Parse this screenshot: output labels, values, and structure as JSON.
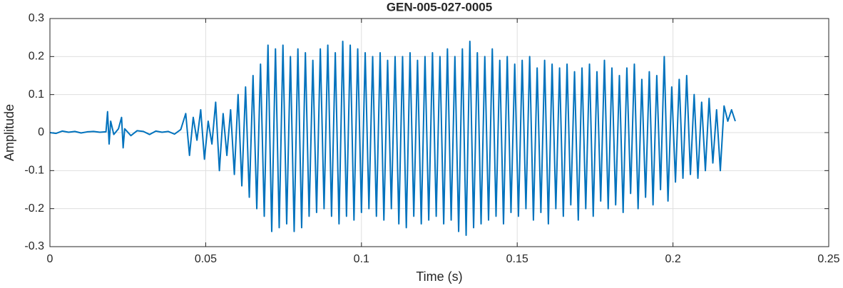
{
  "chart_data": {
    "type": "line",
    "title": "GEN-005-027-0005",
    "xlabel": "Time (s)",
    "ylabel": "Amplitude",
    "xlim": [
      0,
      0.25
    ],
    "xticks": [
      0,
      0.05,
      0.1,
      0.15,
      0.2,
      0.25
    ],
    "ylim": [
      -0.3,
      0.3
    ],
    "yticks": [
      -0.3,
      -0.2,
      -0.1,
      0,
      0.1,
      0.2,
      0.3
    ],
    "grid": true,
    "series": [
      {
        "color": "#0072bd",
        "x": [
          0,
          0.002,
          0.004,
          0.006,
          0.008,
          0.01,
          0.012,
          0.014,
          0.016,
          0.018,
          0.0185,
          0.019,
          0.0195,
          0.0205,
          0.022,
          0.023,
          0.0235,
          0.024,
          0.026,
          0.028,
          0.03,
          0.032,
          0.034,
          0.036,
          0.038,
          0.04,
          0.042,
          0.0436,
          0.0448,
          0.046,
          0.0472,
          0.0484,
          0.0496,
          0.0508,
          0.052,
          0.0532,
          0.0544,
          0.0556,
          0.0568,
          0.058,
          0.0592,
          0.0604,
          0.0616,
          0.0628,
          0.064,
          0.0652,
          0.0664,
          0.0676,
          0.0688,
          0.07,
          0.0712,
          0.0724,
          0.0736,
          0.0748,
          0.076,
          0.0772,
          0.0784,
          0.0796,
          0.0808,
          0.082,
          0.0832,
          0.0844,
          0.0856,
          0.0868,
          0.088,
          0.0892,
          0.0904,
          0.0916,
          0.0928,
          0.094,
          0.0952,
          0.0964,
          0.0976,
          0.0988,
          0.1,
          0.1012,
          0.1024,
          0.1036,
          0.1048,
          0.106,
          0.1072,
          0.1084,
          0.1096,
          0.1108,
          0.112,
          0.1132,
          0.1144,
          0.1156,
          0.1168,
          0.118,
          0.1192,
          0.1204,
          0.1216,
          0.1228,
          0.124,
          0.1252,
          0.1264,
          0.1276,
          0.1288,
          0.13,
          0.1312,
          0.1324,
          0.1336,
          0.1348,
          0.136,
          0.1372,
          0.1384,
          0.1396,
          0.1408,
          0.142,
          0.1432,
          0.1444,
          0.1456,
          0.1468,
          0.148,
          0.1492,
          0.1504,
          0.1516,
          0.1528,
          0.154,
          0.1552,
          0.1564,
          0.1576,
          0.1588,
          0.16,
          0.1612,
          0.1624,
          0.1636,
          0.1648,
          0.166,
          0.1672,
          0.1684,
          0.1696,
          0.1708,
          0.172,
          0.1732,
          0.1744,
          0.1756,
          0.1768,
          0.178,
          0.1792,
          0.1804,
          0.1816,
          0.1828,
          0.184,
          0.1852,
          0.1864,
          0.1876,
          0.1888,
          0.19,
          0.1912,
          0.1924,
          0.1936,
          0.1948,
          0.196,
          0.1972,
          0.1984,
          0.1996,
          0.2008,
          0.202,
          0.2032,
          0.2044,
          0.2056,
          0.2068,
          0.208,
          0.2092,
          0.2104,
          0.2116,
          0.2128,
          0.214,
          0.2152,
          0.2164,
          0.2176,
          0.2188,
          0.22
        ],
        "values": [
          0,
          -0.002,
          0.004,
          0.001,
          0.003,
          -0.001,
          0.002,
          0.003,
          0.001,
          0.002,
          0.055,
          -0.03,
          0.03,
          -0.005,
          0.01,
          0.04,
          -0.04,
          0.01,
          -0.008,
          0.005,
          0.003,
          -0.005,
          0.004,
          0.001,
          0.003,
          -0.004,
          0.008,
          0.05,
          -0.06,
          0.04,
          -0.02,
          0.06,
          -0.07,
          0.03,
          -0.03,
          0.08,
          -0.1,
          0.05,
          -0.06,
          0.06,
          -0.11,
          0.1,
          -0.14,
          0.12,
          -0.17,
          0.15,
          -0.2,
          0.18,
          -0.22,
          0.23,
          -0.26,
          0.22,
          -0.25,
          0.23,
          -0.24,
          0.2,
          -0.26,
          0.22,
          -0.25,
          0.21,
          -0.22,
          0.19,
          -0.21,
          0.22,
          -0.2,
          0.23,
          -0.22,
          0.21,
          -0.24,
          0.24,
          -0.22,
          0.23,
          -0.23,
          0.22,
          -0.21,
          0.21,
          -0.2,
          0.2,
          -0.22,
          0.21,
          -0.23,
          0.19,
          -0.2,
          0.2,
          -0.24,
          0.2,
          -0.25,
          0.21,
          -0.22,
          0.19,
          -0.24,
          0.2,
          -0.23,
          0.21,
          -0.22,
          0.2,
          -0.24,
          0.22,
          -0.23,
          0.2,
          -0.26,
          0.22,
          -0.27,
          0.24,
          -0.25,
          0.21,
          -0.24,
          0.2,
          -0.23,
          0.22,
          -0.22,
          0.19,
          -0.24,
          0.2,
          -0.21,
          0.18,
          -0.22,
          0.19,
          -0.2,
          0.2,
          -0.23,
          0.17,
          -0.21,
          0.19,
          -0.24,
          0.18,
          -0.2,
          0.17,
          -0.22,
          0.18,
          -0.19,
          0.16,
          -0.23,
          0.17,
          -0.2,
          0.18,
          -0.22,
          0.16,
          -0.18,
          0.19,
          -0.2,
          0.17,
          -0.19,
          0.15,
          -0.21,
          0.17,
          -0.16,
          0.18,
          -0.2,
          0.14,
          -0.17,
          0.16,
          -0.19,
          0.15,
          -0.15,
          0.2,
          -0.18,
          0.12,
          -0.13,
          0.14,
          -0.12,
          0.15,
          -0.11,
          0.1,
          -0.12,
          0.08,
          -0.1,
          0.09,
          -0.08,
          0.06,
          -0.1,
          0.07,
          0.03,
          0.06,
          0.03
        ]
      }
    ]
  }
}
